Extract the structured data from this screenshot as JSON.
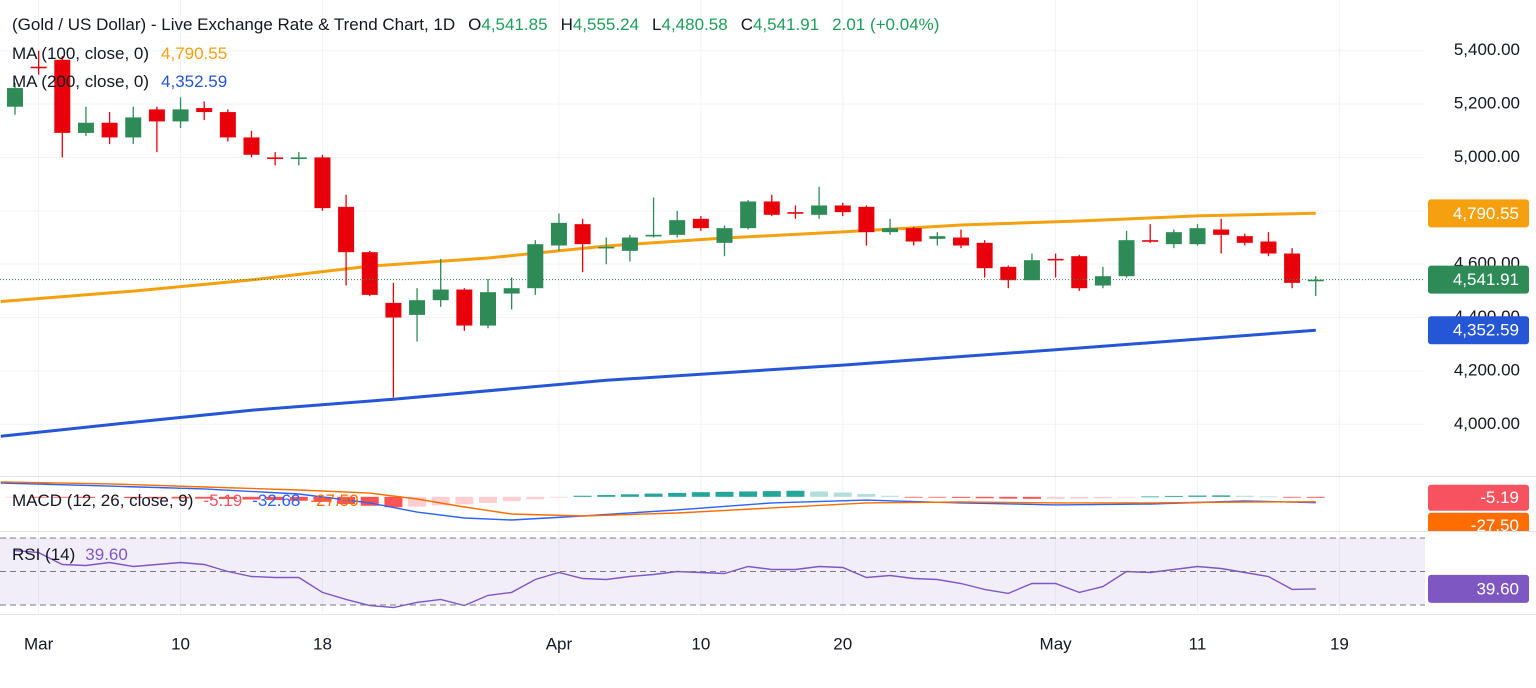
{
  "chart_data": {
    "type": "candlestick",
    "title": "(Gold / US Dollar) - Live Exchange Rate & Trend Chart, 1D",
    "ohlc_legend": [
      {
        "label": "O",
        "value": "4,541.85"
      },
      {
        "label": "H",
        "value": "4,555.24"
      },
      {
        "label": "L",
        "value": "4,480.58"
      },
      {
        "label": "C",
        "value": "4,541.91"
      }
    ],
    "change": "2.01 (+0.04%)",
    "legend_value_color": "#1e9e5a",
    "categories": [
      null,
      "Mar",
      null,
      null,
      null,
      null,
      null,
      "10",
      null,
      null,
      null,
      null,
      null,
      "18",
      null,
      null,
      null,
      null,
      null,
      null,
      null,
      null,
      null,
      "Apr",
      null,
      null,
      null,
      null,
      null,
      "10",
      null,
      null,
      null,
      null,
      null,
      "20",
      null,
      null,
      null,
      null,
      null,
      null,
      null,
      null,
      "May",
      null,
      null,
      null,
      null,
      null,
      "11",
      null,
      null,
      null,
      null,
      null,
      "19"
    ],
    "open": [
      5190,
      5340,
      5366,
      5092,
      5130,
      5075,
      5180,
      5135,
      5185,
      5170,
      5075,
      5000,
      4998,
      5000,
      4815,
      4645,
      4455,
      4410,
      4465,
      4505,
      4370,
      4490,
      4510,
      4670,
      4750,
      4660,
      4650,
      4705,
      4710,
      4770,
      4680,
      4735,
      4835,
      4795,
      4785,
      4820,
      4815,
      4720,
      4735,
      4695,
      4700,
      4680,
      4590,
      4540,
      4620,
      4630,
      4520,
      4555,
      4690,
      4675,
      4675,
      4730,
      4705,
      4685,
      4640,
      4541.85,
      null
    ],
    "high": [
      5280,
      5400,
      5380,
      5190,
      5170,
      5190,
      5190,
      5225,
      5210,
      5180,
      5100,
      5020,
      5020,
      5010,
      4860,
      4650,
      4530,
      4510,
      4620,
      4510,
      4545,
      4550,
      4690,
      4790,
      4770,
      4700,
      4710,
      4850,
      4800,
      4780,
      4745,
      4840,
      4860,
      4820,
      4890,
      4830,
      4820,
      4770,
      4740,
      4720,
      4730,
      4690,
      4595,
      4640,
      4640,
      4635,
      4590,
      4725,
      4750,
      4730,
      4750,
      4770,
      4715,
      4720,
      4660,
      4555.24,
      null
    ],
    "low": [
      5160,
      5310,
      5000,
      5080,
      5050,
      5050,
      5020,
      5110,
      5140,
      5060,
      5000,
      4970,
      4970,
      4800,
      4520,
      4480,
      4100,
      4310,
      4440,
      4350,
      4360,
      4430,
      4485,
      4650,
      4570,
      4600,
      4610,
      4700,
      4700,
      4725,
      4630,
      4730,
      4780,
      4770,
      4770,
      4780,
      4670,
      4710,
      4670,
      4670,
      4660,
      4550,
      4510,
      4540,
      4550,
      4500,
      4510,
      4550,
      4680,
      4660,
      4670,
      4640,
      4670,
      4630,
      4510,
      4480.58,
      null
    ],
    "close": [
      5260,
      5335,
      5092,
      5130,
      5075,
      5150,
      5135,
      5180,
      5170,
      5075,
      5010,
      4995,
      5000,
      4810,
      4645,
      4485,
      4400,
      4465,
      4505,
      4370,
      4495,
      4510,
      4675,
      4755,
      4675,
      4665,
      4700,
      4710,
      4765,
      4735,
      4735,
      4835,
      4785,
      4790,
      4820,
      4795,
      4720,
      4735,
      4685,
      4705,
      4670,
      4585,
      4540,
      4615,
      4615,
      4510,
      4555,
      4690,
      4685,
      4720,
      4735,
      4710,
      4680,
      4640,
      4530,
      4541.91,
      null
    ],
    "up_color": "#2e8b57",
    "down_color": "#e8000b",
    "last_price_label": "4,541.91",
    "ylim": [
      3810,
      5590
    ],
    "yticks": [
      {
        "value": 4000,
        "label": "4,000.00"
      },
      {
        "value": 4200,
        "label": "4,200.00"
      },
      {
        "value": 4400,
        "label": "4,400.00"
      },
      {
        "value": 4600,
        "label": "4,600.00"
      },
      {
        "value": 4800,
        "label": "4,800.00"
      },
      {
        "value": 5000,
        "label": "5,000.00"
      },
      {
        "value": 5200,
        "label": "5,200.00"
      },
      {
        "value": 5400,
        "label": "5,400.00"
      }
    ],
    "grid": true,
    "overlays": [
      {
        "name": "MA (100, close, 0)",
        "color": "#f5a00f",
        "last_label": "4,790.55",
        "x": [
          -0.6,
          5,
          10,
          15,
          20,
          25,
          30,
          35,
          40,
          45,
          50,
          55
        ],
        "values": [
          4460,
          4499,
          4541,
          4593,
          4623,
          4668,
          4698,
          4721,
          4747,
          4762,
          4781,
          4790.55
        ]
      },
      {
        "name": "MA (200, close, 0)",
        "color": "#2456d6",
        "last_label": "4,352.59",
        "x": [
          -0.6,
          5,
          10,
          16,
          25,
          35,
          45,
          55
        ],
        "values": [
          3955,
          4008,
          4053,
          4094,
          4165,
          4222,
          4286,
          4352.59
        ]
      }
    ],
    "macd": {
      "name": "MACD (12, 26, close, 9)",
      "legend_values": [
        "-5.19",
        "-32.68",
        "-27.50"
      ],
      "legend_value_colors": [
        "#f7525f",
        "#2962ff",
        "#ff6d00"
      ],
      "ylim": [
        -185,
        105
      ],
      "x": [
        -0.6,
        4,
        8,
        12,
        15,
        17,
        19,
        21,
        24,
        28,
        32,
        36,
        40,
        44,
        48,
        52,
        55
      ],
      "lines": [
        {
          "color": "#2962ff",
          "values": [
            77,
            60,
            44,
            16,
            -34,
            -85,
            -118,
            -129,
            -107,
            -73,
            -34,
            -18,
            -34,
            -45,
            -40,
            -23,
            -32.68
          ]
        },
        {
          "color": "#ff6d00",
          "values": [
            83,
            72,
            55,
            38,
            21,
            -12,
            -57,
            -96,
            -107,
            -90,
            -62,
            -34,
            -29,
            -34,
            -34,
            -29,
            -27.5
          ]
        }
      ],
      "hist": [
        -3,
        -4,
        -5,
        -6,
        -6,
        -7,
        -8,
        -9,
        -10,
        -12,
        -15,
        -18,
        -22,
        -28,
        -40,
        -50,
        -58,
        -55,
        -48,
        -42,
        -34,
        -24,
        -14,
        -2,
        6,
        10,
        14,
        18,
        22,
        26,
        28,
        30,
        32,
        34,
        30,
        24,
        16,
        6,
        -2,
        -4,
        -6,
        -8,
        -10,
        -11,
        -11,
        -10,
        -8,
        -4,
        2,
        5,
        7,
        8,
        6,
        2,
        -2,
        -5.19,
        null
      ],
      "hist_colors": [
        "#26a69a",
        "#b2dfdb",
        "#ffcdd2",
        "#ff5252"
      ]
    },
    "rsi": {
      "name": "RSI (14)",
      "value_label": "39.60",
      "color": "#7e57c2",
      "ylim": [
        24,
        73
      ],
      "levels": [
        30,
        50,
        70
      ],
      "values": [
        62.5,
        61.3,
        54.2,
        53.6,
        55.4,
        53,
        54.2,
        55.4,
        54.2,
        50,
        47,
        46.4,
        46.4,
        37.5,
        33.3,
        29.7,
        28.5,
        31.5,
        33.3,
        29.7,
        35.7,
        37.5,
        45.2,
        49.4,
        45.8,
        45.2,
        47,
        48.2,
        50,
        49.4,
        48.8,
        53,
        51.2,
        51.2,
        53,
        52.4,
        46.4,
        47.6,
        45.8,
        45.2,
        42.8,
        39.3,
        36.9,
        42.8,
        42.8,
        37.5,
        41,
        50,
        49.4,
        51.2,
        53,
        51.8,
        49.4,
        47,
        39.3,
        39.6,
        null
      ]
    }
  }
}
